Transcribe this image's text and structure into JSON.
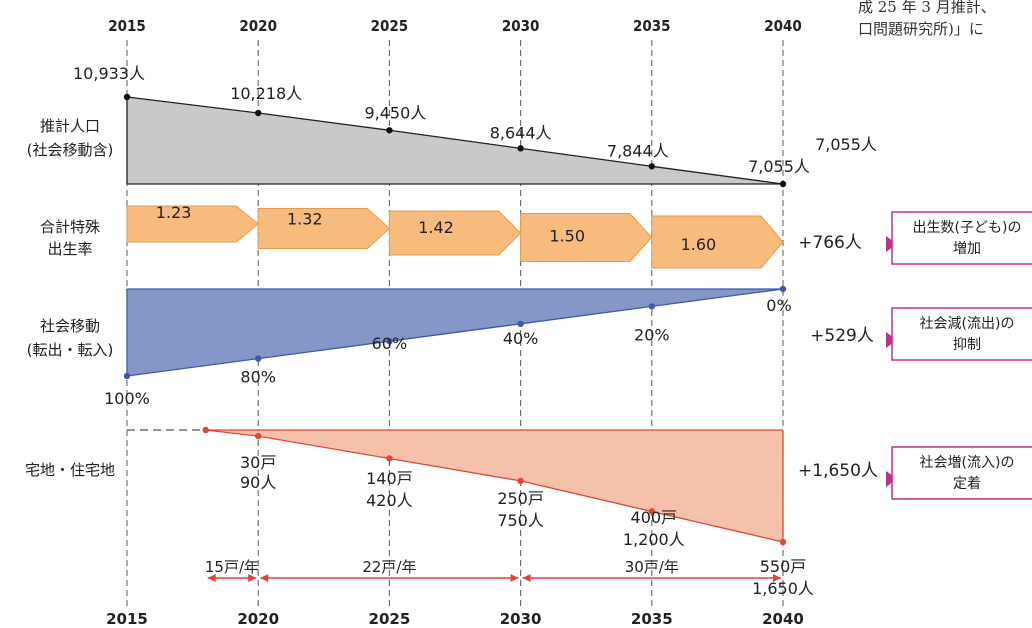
{
  "colors": {
    "population_fill": "#c9c9c9",
    "fertility_fill": "#f7bb7e",
    "fertility_stroke": "#e89a4e",
    "migration_fill": "#8597c9",
    "migration_stroke": "#3d5aa8",
    "housing_fill": "#f6c1ab",
    "housing_stroke": "#e0453a",
    "accent_magenta": "#b8338c",
    "arrow_red": "#e0453a"
  },
  "note_lines": [
    "成 25 年 3 月推計、",
    "口問題研究所)」に"
  ],
  "chart_data": {
    "type": "area",
    "years": [
      2015,
      2020,
      2025,
      2030,
      2035,
      2040
    ],
    "top_axis_labels": [
      "2015",
      "2020",
      "2025",
      "2030",
      "2035",
      "2040"
    ],
    "bottom_axis_labels": [
      "2015",
      "2020",
      "2025",
      "2030",
      "2035",
      "2040"
    ],
    "rows": [
      {
        "id": "population",
        "label_lines": [
          "推計人口",
          "(社会移動含)"
        ],
        "series": [
          {
            "x": 2015,
            "value": 10933,
            "label": "10,933人"
          },
          {
            "x": 2020,
            "value": 10218,
            "label": "10,218人"
          },
          {
            "x": 2025,
            "value": 9450,
            "label": "9,450人"
          },
          {
            "x": 2030,
            "value": 8644,
            "label": "8,644人"
          },
          {
            "x": 2035,
            "value": 7844,
            "label": "7,844人"
          },
          {
            "x": 2040,
            "value": 7055,
            "label": "7,055人"
          }
        ],
        "side_value": "7,055人"
      },
      {
        "id": "fertility",
        "label_lines": [
          "合計特殊",
          "出生率"
        ],
        "segments": [
          {
            "from": 2015,
            "to": 2020,
            "value": 1.23,
            "label": "1.23"
          },
          {
            "from": 2020,
            "to": 2025,
            "value": 1.32,
            "label": "1.32"
          },
          {
            "from": 2025,
            "to": 2030,
            "value": 1.42,
            "label": "1.42"
          },
          {
            "from": 2030,
            "to": 2035,
            "value": 1.5,
            "label": "1.50"
          },
          {
            "from": 2035,
            "to": 2040,
            "value": 1.6,
            "label": "1.60"
          }
        ],
        "effect": "+766人",
        "effect_box_lines": [
          "出生数(子ども)の",
          "増加"
        ]
      },
      {
        "id": "migration",
        "label_lines": [
          "社会移動",
          "(転出・転入)"
        ],
        "series": [
          {
            "x": 2015,
            "value": 100,
            "label": "100%"
          },
          {
            "x": 2020,
            "value": 80,
            "label": "80%"
          },
          {
            "x": 2025,
            "value": 60,
            "label": "60%"
          },
          {
            "x": 2030,
            "value": 40,
            "label": "40%"
          },
          {
            "x": 2035,
            "value": 20,
            "label": "20%"
          },
          {
            "x": 2040,
            "value": 0,
            "label": "0%"
          }
        ],
        "effect": "+529人",
        "effect_box_lines": [
          "社会減(流出)の",
          "抑制"
        ]
      },
      {
        "id": "housing",
        "label_lines": [
          "宅地・住宅地"
        ],
        "start_year": 2018,
        "series": [
          {
            "x": 2018,
            "houses": 0,
            "people": 0,
            "labels": []
          },
          {
            "x": 2020,
            "houses": 30,
            "people": 90,
            "labels": [
              "30戸",
              "90人"
            ]
          },
          {
            "x": 2025,
            "houses": 140,
            "people": 420,
            "labels": [
              "140戸",
              "420人"
            ]
          },
          {
            "x": 2030,
            "houses": 250,
            "people": 750,
            "labels": [
              "250戸",
              "750人"
            ]
          },
          {
            "x": 2035,
            "houses": 400,
            "people": 1200,
            "labels": [
              "400戸",
              "1,200人"
            ]
          },
          {
            "x": 2040,
            "houses": 550,
            "people": 1650,
            "labels": [
              "550戸",
              "1,650人"
            ]
          }
        ],
        "effect": "+1,650人",
        "effect_box_lines": [
          "社会増(流入)の",
          "定着"
        ]
      }
    ],
    "rate_arrows": [
      {
        "from": 2018,
        "to": 2020,
        "label": "15戸/年"
      },
      {
        "from": 2020,
        "to": 2030,
        "label": "22戸/年"
      },
      {
        "from": 2030,
        "to": 2040,
        "label": "30戸/年"
      }
    ]
  }
}
